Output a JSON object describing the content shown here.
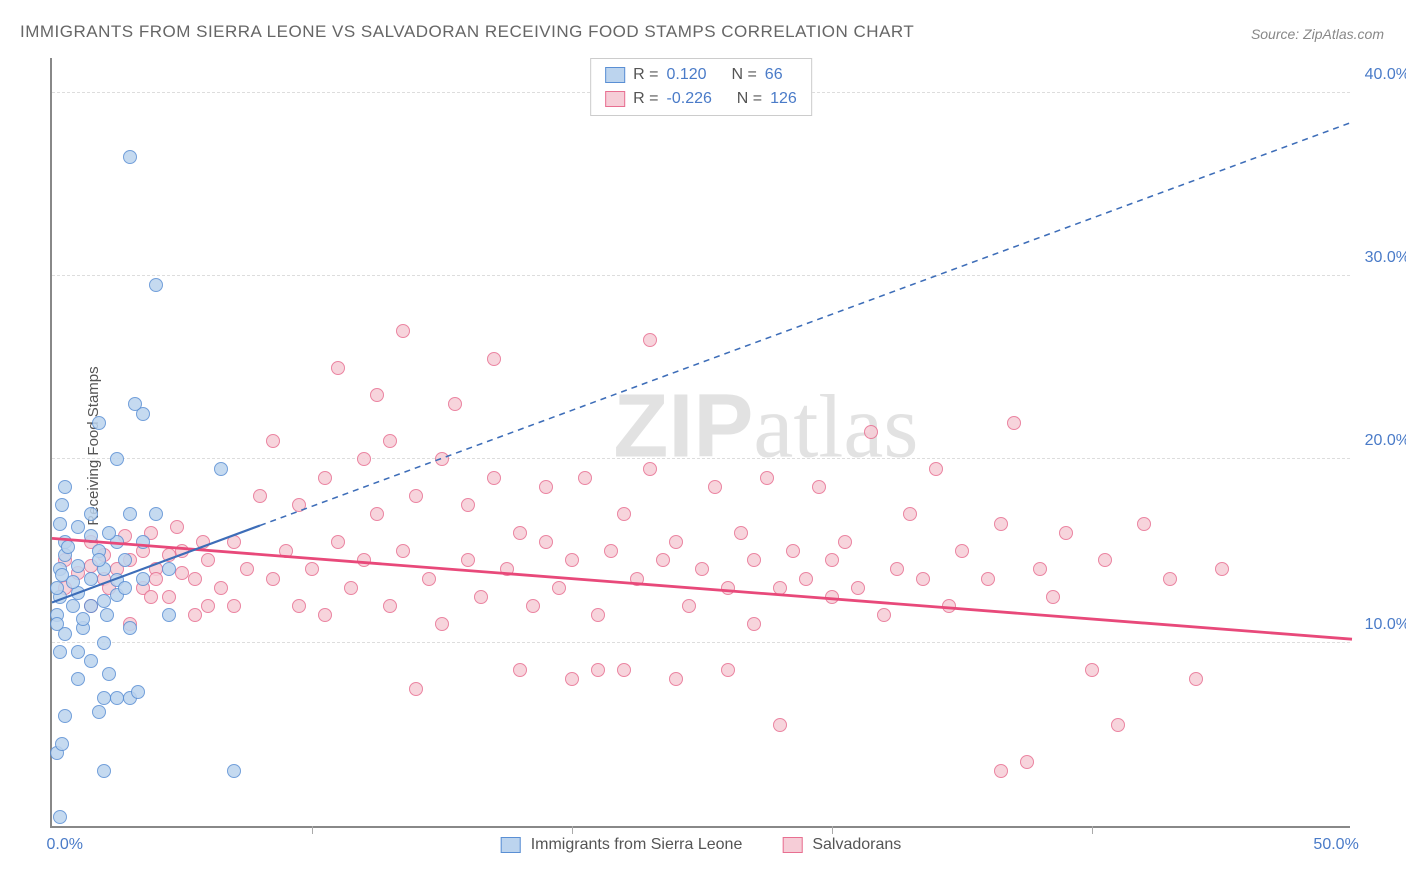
{
  "title": "IMMIGRANTS FROM SIERRA LEONE VS SALVADORAN RECEIVING FOOD STAMPS CORRELATION CHART",
  "source": "Source: ZipAtlas.com",
  "watermark_a": "ZIP",
  "watermark_b": "atlas",
  "ylabel": "Receiving Food Stamps",
  "chart": {
    "type": "scatter",
    "xlim": [
      0,
      50
    ],
    "ylim": [
      0,
      42
    ],
    "xticks_major": [
      0,
      50
    ],
    "xticks_minor": [
      10,
      20,
      30,
      40
    ],
    "yticks": [
      10,
      20,
      30,
      40
    ],
    "ytick_labels": [
      "10.0%",
      "20.0%",
      "30.0%",
      "40.0%"
    ],
    "xtick_labels": [
      "0.0%",
      "50.0%"
    ],
    "background_color": "#ffffff",
    "grid_color": "#dddddd",
    "axis_color": "#888888",
    "tick_color": "#4a7bc8"
  },
  "series": {
    "a": {
      "label": "Immigrants from Sierra Leone",
      "fill": "#bcd4ee",
      "stroke": "#5a8fd4",
      "R_label": "R =",
      "R": "0.120",
      "N_label": "N =",
      "N": "66",
      "trend": {
        "solid_from": [
          0,
          12.3
        ],
        "solid_to": [
          8,
          16.5
        ],
        "dash_to": [
          50,
          38.5
        ],
        "stroke": "#3d6db8",
        "width": 2.2,
        "dash": "6,5"
      },
      "points": [
        [
          0.3,
          0.5
        ],
        [
          0.2,
          4.0
        ],
        [
          0.4,
          4.5
        ],
        [
          2.0,
          3.0
        ],
        [
          0.5,
          6.0
        ],
        [
          1.8,
          6.2
        ],
        [
          2.0,
          7.0
        ],
        [
          2.5,
          7.0
        ],
        [
          1.0,
          8.0
        ],
        [
          2.2,
          8.3
        ],
        [
          3.0,
          7.0
        ],
        [
          3.3,
          7.3
        ],
        [
          0.3,
          9.5
        ],
        [
          1.0,
          9.5
        ],
        [
          1.5,
          9.0
        ],
        [
          0.5,
          10.5
        ],
        [
          1.2,
          10.8
        ],
        [
          2.0,
          10.0
        ],
        [
          3.0,
          10.8
        ],
        [
          0.2,
          11.5
        ],
        [
          0.8,
          12.0
        ],
        [
          1.5,
          12.0
        ],
        [
          7.0,
          3.0
        ],
        [
          0.3,
          12.5
        ],
        [
          1.0,
          12.7
        ],
        [
          2.0,
          12.3
        ],
        [
          2.5,
          12.6
        ],
        [
          0.2,
          13.0
        ],
        [
          0.8,
          13.3
        ],
        [
          1.5,
          13.5
        ],
        [
          2.5,
          13.4
        ],
        [
          0.3,
          14.0
        ],
        [
          1.0,
          14.2
        ],
        [
          2.0,
          14.0
        ],
        [
          2.8,
          14.5
        ],
        [
          0.5,
          14.8
        ],
        [
          1.8,
          15.0
        ],
        [
          0.5,
          15.5
        ],
        [
          1.5,
          15.8
        ],
        [
          2.5,
          15.5
        ],
        [
          3.5,
          15.5
        ],
        [
          0.3,
          16.5
        ],
        [
          1.5,
          17.0
        ],
        [
          3.0,
          17.0
        ],
        [
          4.0,
          17.0
        ],
        [
          4.5,
          11.5
        ],
        [
          0.5,
          18.5
        ],
        [
          3.5,
          22.5
        ],
        [
          1.8,
          22.0
        ],
        [
          3.2,
          23.0
        ],
        [
          2.5,
          20.0
        ],
        [
          6.5,
          19.5
        ],
        [
          3.0,
          36.5
        ],
        [
          4.0,
          29.5
        ],
        [
          0.2,
          11.0
        ],
        [
          1.2,
          11.3
        ],
        [
          2.1,
          11.5
        ],
        [
          0.4,
          13.7
        ],
        [
          1.8,
          14.5
        ],
        [
          0.6,
          15.2
        ],
        [
          2.2,
          16.0
        ],
        [
          1.0,
          16.3
        ],
        [
          0.4,
          17.5
        ],
        [
          2.8,
          13.0
        ],
        [
          3.5,
          13.5
        ],
        [
          4.5,
          14.0
        ]
      ]
    },
    "b": {
      "label": "Salvadorans",
      "fill": "#f6cdd7",
      "stroke": "#e86f91",
      "R_label": "R =",
      "R": "-0.226",
      "N_label": "N =",
      "N": "126",
      "trend": {
        "solid_from": [
          0,
          15.8
        ],
        "solid_to": [
          50,
          10.3
        ],
        "stroke": "#e8497a",
        "width": 2.8
      },
      "points": [
        [
          0.5,
          13.0
        ],
        [
          1.5,
          12.0
        ],
        [
          2.0,
          13.5
        ],
        [
          3.0,
          11.0
        ],
        [
          3.5,
          13.0
        ],
        [
          4.0,
          14.0
        ],
        [
          4.5,
          12.5
        ],
        [
          5.0,
          15.0
        ],
        [
          5.5,
          11.5
        ],
        [
          5.5,
          13.5
        ],
        [
          6.0,
          14.5
        ],
        [
          6.5,
          13.0
        ],
        [
          7.0,
          15.5
        ],
        [
          7.0,
          12.0
        ],
        [
          7.5,
          14.0
        ],
        [
          8.0,
          18.0
        ],
        [
          8.5,
          13.5
        ],
        [
          8.5,
          21.0
        ],
        [
          9.0,
          15.0
        ],
        [
          9.5,
          12.0
        ],
        [
          9.5,
          17.5
        ],
        [
          10.0,
          14.0
        ],
        [
          10.5,
          19.0
        ],
        [
          10.5,
          11.5
        ],
        [
          11.0,
          15.5
        ],
        [
          11.0,
          25.0
        ],
        [
          11.5,
          13.0
        ],
        [
          12.0,
          20.0
        ],
        [
          12.0,
          14.5
        ],
        [
          12.5,
          17.0
        ],
        [
          12.5,
          23.5
        ],
        [
          13.0,
          12.0
        ],
        [
          13.0,
          21.0
        ],
        [
          13.5,
          15.0
        ],
        [
          13.5,
          27.0
        ],
        [
          14.0,
          18.0
        ],
        [
          14.0,
          7.5
        ],
        [
          14.5,
          13.5
        ],
        [
          15.0,
          20.0
        ],
        [
          15.0,
          11.0
        ],
        [
          15.5,
          23.0
        ],
        [
          16.0,
          14.5
        ],
        [
          16.0,
          17.5
        ],
        [
          16.5,
          12.5
        ],
        [
          17.0,
          19.0
        ],
        [
          17.0,
          25.5
        ],
        [
          17.5,
          14.0
        ],
        [
          18.0,
          16.0
        ],
        [
          18.0,
          8.5
        ],
        [
          18.5,
          12.0
        ],
        [
          19.0,
          15.5
        ],
        [
          19.0,
          18.5
        ],
        [
          19.5,
          13.0
        ],
        [
          20.0,
          8.0
        ],
        [
          20.0,
          14.5
        ],
        [
          20.5,
          19.0
        ],
        [
          21.0,
          11.5
        ],
        [
          21.0,
          8.5
        ],
        [
          21.5,
          15.0
        ],
        [
          22.0,
          17.0
        ],
        [
          22.0,
          8.5
        ],
        [
          22.5,
          13.5
        ],
        [
          23.0,
          19.5
        ],
        [
          23.0,
          26.5
        ],
        [
          23.5,
          14.5
        ],
        [
          24.0,
          8.0
        ],
        [
          24.0,
          15.5
        ],
        [
          24.5,
          12.0
        ],
        [
          25.0,
          14.0
        ],
        [
          25.5,
          18.5
        ],
        [
          26.0,
          8.5
        ],
        [
          26.0,
          13.0
        ],
        [
          26.5,
          16.0
        ],
        [
          27.0,
          11.0
        ],
        [
          27.0,
          14.5
        ],
        [
          27.5,
          19.0
        ],
        [
          28.0,
          5.5
        ],
        [
          28.0,
          13.0
        ],
        [
          28.5,
          15.0
        ],
        [
          29.0,
          13.5
        ],
        [
          29.5,
          18.5
        ],
        [
          30.0,
          12.5
        ],
        [
          30.0,
          14.5
        ],
        [
          30.5,
          15.5
        ],
        [
          31.0,
          13.0
        ],
        [
          31.5,
          21.5
        ],
        [
          32.0,
          11.5
        ],
        [
          32.5,
          14.0
        ],
        [
          33.0,
          17.0
        ],
        [
          33.5,
          13.5
        ],
        [
          34.0,
          19.5
        ],
        [
          34.5,
          12.0
        ],
        [
          35.0,
          15.0
        ],
        [
          36.0,
          13.5
        ],
        [
          36.5,
          16.5
        ],
        [
          37.0,
          22.0
        ],
        [
          37.5,
          3.5
        ],
        [
          38.0,
          14.0
        ],
        [
          38.5,
          12.5
        ],
        [
          39.0,
          16.0
        ],
        [
          40.0,
          8.5
        ],
        [
          40.5,
          14.5
        ],
        [
          41.0,
          5.5
        ],
        [
          42.0,
          16.5
        ],
        [
          43.0,
          13.5
        ],
        [
          44.0,
          8.0
        ],
        [
          45.0,
          14.0
        ],
        [
          0.5,
          14.5
        ],
        [
          1.0,
          13.8
        ],
        [
          1.5,
          14.2
        ],
        [
          2.0,
          14.8
        ],
        [
          2.5,
          14.0
        ],
        [
          3.0,
          14.5
        ],
        [
          3.5,
          15.0
        ],
        [
          4.0,
          13.5
        ],
        [
          5.0,
          13.8
        ],
        [
          6.0,
          12.0
        ],
        [
          2.8,
          15.8
        ],
        [
          3.8,
          16.0
        ],
        [
          4.8,
          16.3
        ],
        [
          1.5,
          15.5
        ],
        [
          2.2,
          13.0
        ],
        [
          3.8,
          12.5
        ],
        [
          4.5,
          14.8
        ],
        [
          5.8,
          15.5
        ],
        [
          36.5,
          3.0
        ]
      ]
    }
  }
}
